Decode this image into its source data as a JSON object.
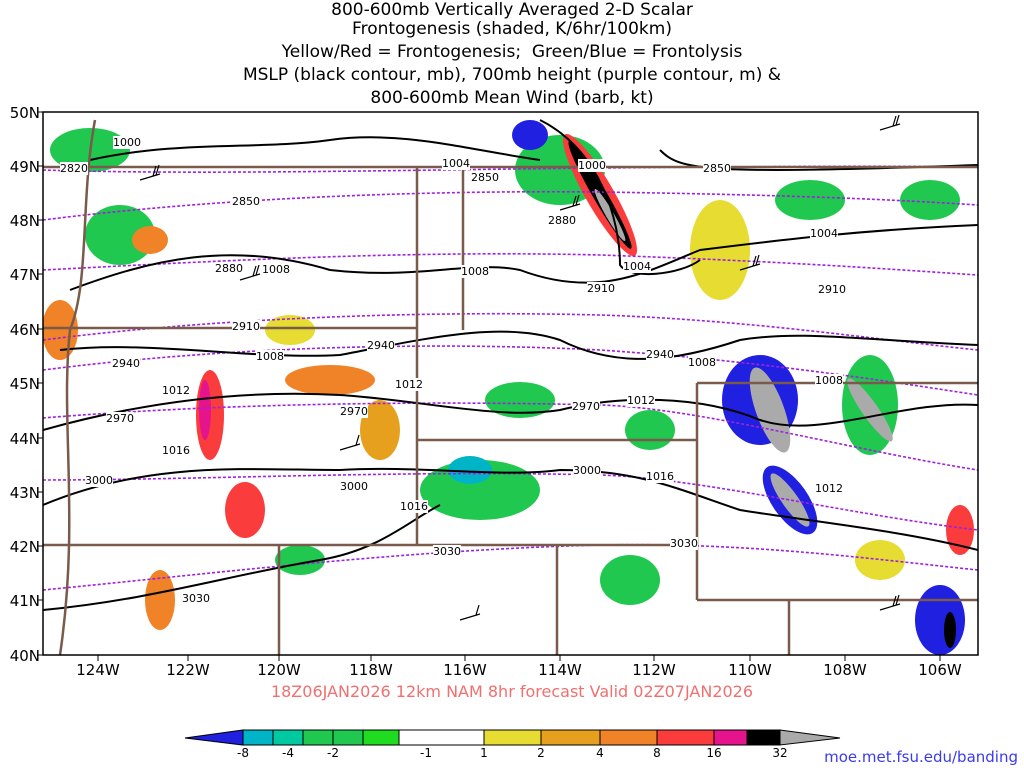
{
  "title_lines": [
    "800-600mb Vertically Averaged 2-D Scalar",
    "Frontogenesis (shaded, K/6hr/100km)",
    "Yellow/Red = Frontogenesis;  Green/Blue = Frontolysis",
    "MSLP (black contour, mb), 700mb height (purple contour, m) &",
    "800-600mb Mean Wind (barb, kt)"
  ],
  "valid_line": "18Z06JAN2026 12km NAM 8hr forecast Valid 02Z07JAN2026",
  "credit": "moe.met.fsu.edu/banding",
  "lat_labels": [
    "50N",
    "49N",
    "48N",
    "47N",
    "46N",
    "45N",
    "44N",
    "43N",
    "42N",
    "41N",
    "40N"
  ],
  "lon_labels": [
    "124W",
    "122W",
    "120W",
    "118W",
    "116W",
    "114W",
    "112W",
    "110W",
    "108W",
    "106W"
  ],
  "colorbar": {
    "ticks": [
      "-8",
      "-4",
      "-2",
      "-1",
      "1",
      "2",
      "4",
      "8",
      "16",
      "32"
    ],
    "colors": [
      "#2020e0",
      "#00b4c8",
      "#00c8a0",
      "#20c850",
      "#20dc20",
      "#ffffff",
      "#e6dc32",
      "#e6a01e",
      "#f08228",
      "#fa3c3c",
      "#e6148c",
      "#000000",
      "#aaaaaa"
    ]
  },
  "mslp_labels": [
    "1000",
    "1004",
    "1000",
    "1004",
    "1008",
    "1004",
    "1008",
    "1008",
    "1012",
    "1012",
    "1012",
    "1008",
    "1016",
    "1016",
    "1016",
    "1012",
    "1008"
  ],
  "height_labels": [
    "2820",
    "2850",
    "2880",
    "2850",
    "2880",
    "2850",
    "2910",
    "2910",
    "2910",
    "2940",
    "2940",
    "2940",
    "2970",
    "2970",
    "2970",
    "3000",
    "3000",
    "3000",
    "3030",
    "3030",
    "3030"
  ],
  "colors": {
    "mslp": "#000000",
    "height": "#a020e0",
    "border": "#7a5a4a",
    "frontogenesis_high": "#e6148c",
    "frontolysis": "#2020e0"
  }
}
